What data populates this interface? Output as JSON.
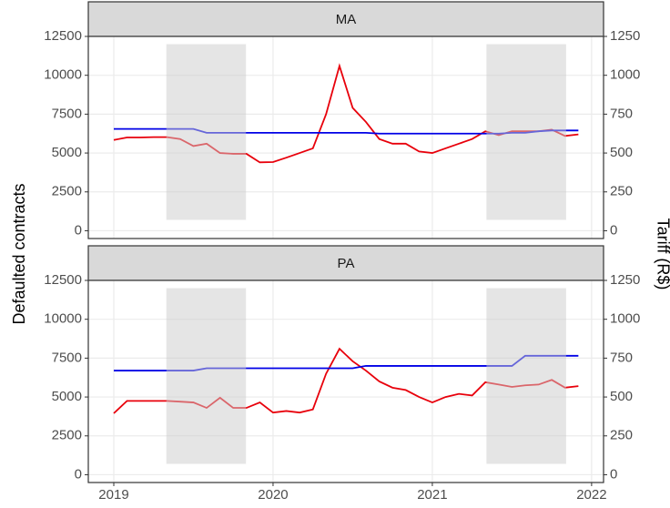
{
  "chart_data": {
    "type": "line",
    "ylabel": "Defaulted contracts",
    "y2label": "Tariff (R$)",
    "x": [
      2019,
      2019.083,
      2019.167,
      2019.25,
      2019.333,
      2019.417,
      2019.5,
      2019.583,
      2019.667,
      2019.75,
      2019.833,
      2019.917,
      2020,
      2020.083,
      2020.167,
      2020.25,
      2020.333,
      2020.417,
      2020.5,
      2020.583,
      2020.667,
      2020.75,
      2020.833,
      2020.917,
      2021,
      2021.083,
      2021.167,
      2021.25,
      2021.333,
      2021.417,
      2021.5,
      2021.583,
      2021.667,
      2021.75,
      2021.833,
      2021.917
    ],
    "xlim": [
      2018.84,
      2022.075
    ],
    "xticks": [
      2019,
      2020,
      2021,
      2022
    ],
    "ylim": [
      -500,
      12500
    ],
    "yticks": [
      0,
      2500,
      5000,
      7500,
      10000,
      12500
    ],
    "y2lim": [
      -50,
      1250
    ],
    "y2ticks": [
      0,
      250,
      500,
      750,
      1000,
      1250
    ],
    "grid": true,
    "shaded": [
      {
        "start": 2019.33,
        "end": 2019.83
      },
      {
        "start": 2021.34,
        "end": 2021.84
      }
    ],
    "shaded_ylim": [
      700,
      12000
    ],
    "panels": [
      {
        "title": "MA",
        "series": [
          {
            "name": "Defaulted contracts",
            "color": "#e8000b",
            "values": [
              5840,
              6000,
              6000,
              6020,
              6020,
              5900,
              5450,
              5600,
              5000,
              4950,
              4950,
              4400,
              4420,
              4700,
              5000,
              5300,
              7500,
              10600,
              7900,
              7000,
              5900,
              5600,
              5600,
              5100,
              5000,
              5300,
              5600,
              5900,
              6400,
              6150,
              6400,
              6400,
              6400,
              6500,
              6100,
              6200
            ]
          },
          {
            "name": "Tariff (R$)",
            "color": "#0000e6",
            "axis": "y2",
            "values": [
              655,
              655,
              655,
              655,
              655,
              655,
              655,
              630,
              630,
              630,
              630,
              630,
              630,
              630,
              630,
              630,
              630,
              630,
              630,
              630,
              625,
              625,
              625,
              625,
              625,
              625,
              625,
              625,
              625,
              625,
              630,
              630,
              640,
              645,
              645,
              645
            ]
          }
        ]
      },
      {
        "title": "PA",
        "series": [
          {
            "name": "Defaulted contracts",
            "color": "#e8000b",
            "values": [
              3950,
              4750,
              4750,
              4750,
              4750,
              4700,
              4650,
              4300,
              4950,
              4300,
              4300,
              4650,
              4000,
              4100,
              4000,
              4200,
              6500,
              8100,
              7300,
              6700,
              6000,
              5600,
              5450,
              5000,
              4650,
              5000,
              5200,
              5100,
              5950,
              5800,
              5650,
              5750,
              5800,
              6100,
              5600,
              5700
            ]
          },
          {
            "name": "Tariff (R$)",
            "color": "#0000e6",
            "axis": "y2",
            "values": [
              670,
              670,
              670,
              670,
              670,
              670,
              670,
              685,
              685,
              685,
              685,
              685,
              685,
              685,
              685,
              685,
              685,
              685,
              685,
              700,
              700,
              700,
              700,
              700,
              700,
              700,
              700,
              700,
              700,
              700,
              700,
              765,
              765,
              765,
              765,
              765
            ]
          }
        ]
      }
    ]
  }
}
